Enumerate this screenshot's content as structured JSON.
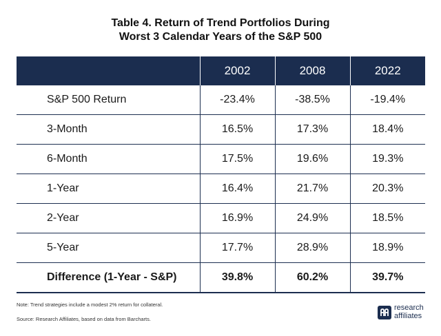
{
  "title": {
    "line1": "Table 4. Return of Trend Portfolios During",
    "line2": "Worst 3 Calendar Years of the S&P 500"
  },
  "table": {
    "columns": [
      "2002",
      "2008",
      "2022"
    ],
    "rows": [
      {
        "label": "S&P 500 Return",
        "values": [
          "-23.4%",
          "-38.5%",
          "-19.4%"
        ]
      },
      {
        "label": "3-Month",
        "values": [
          "16.5%",
          "17.3%",
          "18.4%"
        ]
      },
      {
        "label": "6-Month",
        "values": [
          "17.5%",
          "19.6%",
          "19.3%"
        ]
      },
      {
        "label": "1-Year",
        "values": [
          "16.4%",
          "21.7%",
          "20.3%"
        ]
      },
      {
        "label": "2-Year",
        "values": [
          "16.9%",
          "24.9%",
          "18.5%"
        ]
      },
      {
        "label": "5-Year",
        "values": [
          "17.7%",
          "28.9%",
          "18.9%"
        ]
      },
      {
        "label": "Difference (1-Year - S&P)",
        "values": [
          "39.8%",
          "60.2%",
          "39.7%"
        ]
      }
    ]
  },
  "notes": {
    "note": "Note: Trend strategies include a modest 2% return for collateral.",
    "source": "Source: Research Affiliates, based on data from Barcharts."
  },
  "logo": {
    "line1": "research",
    "line2": "affiliates",
    "icon": "ra-logo-icon",
    "color": "#1b2d4f"
  },
  "colors": {
    "header_bg": "#1b2d4f",
    "header_text": "#ffffff"
  }
}
